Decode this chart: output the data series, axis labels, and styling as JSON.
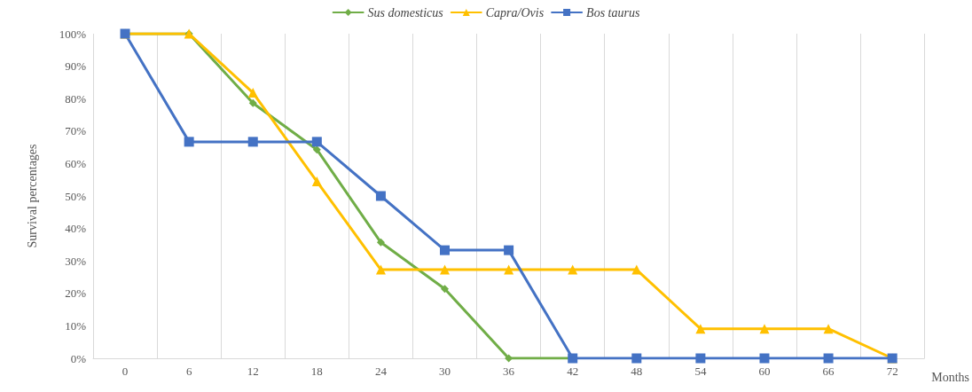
{
  "chart_data": {
    "type": "line",
    "xlabel": "Months",
    "ylabel": "Survival percentages",
    "categories": [
      "0",
      "6",
      "12",
      "18",
      "24",
      "30",
      "36",
      "42",
      "48",
      "54",
      "60",
      "66",
      "72"
    ],
    "series": [
      {
        "name": "Sus domesticus",
        "color": "#70ad47",
        "marker": "diamond",
        "values": [
          100,
          100,
          78.6,
          64.3,
          35.7,
          21.4,
          0,
          0,
          null,
          null,
          null,
          null,
          null
        ]
      },
      {
        "name": "Capra/Ovis",
        "color": "#ffc000",
        "marker": "triangle",
        "values": [
          100,
          100,
          81.8,
          54.5,
          27.3,
          27.3,
          27.3,
          27.3,
          27.3,
          9.1,
          9.1,
          9.1,
          0
        ]
      },
      {
        "name": "Bos taurus",
        "color": "#4472c4",
        "marker": "square",
        "values": [
          100,
          66.7,
          66.7,
          66.7,
          50,
          33.3,
          33.3,
          0,
          0,
          0,
          0,
          0,
          0
        ]
      }
    ],
    "ylim": [
      0,
      100
    ],
    "yticks": [
      {
        "value": 0,
        "label": "0%"
      },
      {
        "value": 10,
        "label": "10%"
      },
      {
        "value": 20,
        "label": "20%"
      },
      {
        "value": 30,
        "label": "30%"
      },
      {
        "value": 40,
        "label": "40%"
      },
      {
        "value": 50,
        "label": "50%"
      },
      {
        "value": 60,
        "label": "60%"
      },
      {
        "value": 70,
        "label": "70%"
      },
      {
        "value": 80,
        "label": "80%"
      },
      {
        "value": 90,
        "label": "90%"
      },
      {
        "value": 100,
        "label": "100%"
      }
    ],
    "grid": "x",
    "legend": "top",
    "line_style": "solid"
  }
}
